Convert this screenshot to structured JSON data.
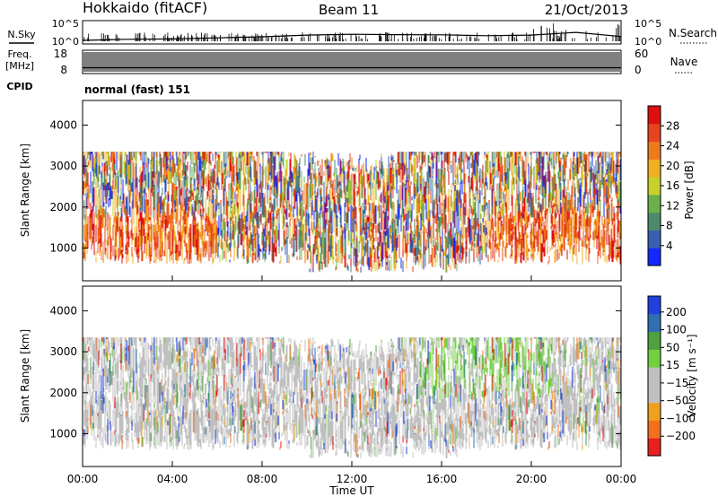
{
  "header": {
    "station": "Hokkaido (fitACF)",
    "beam": "Beam 11",
    "date": "21/Oct/2013"
  },
  "noise_panel": {
    "left_label": "N.Sky",
    "right_label": "N.Search",
    "ticks_left": [
      "10^5",
      "10^0"
    ],
    "ticks_right": [
      "10^5",
      "10^0"
    ]
  },
  "freq_panel": {
    "left_label_1": "Freq.",
    "left_label_2": "[MHz]",
    "right_label": "Nave",
    "ticks_left": [
      "18",
      "8"
    ],
    "ticks_right": [
      "60",
      "0"
    ]
  },
  "cpid": {
    "label": "CPID",
    "text": "normal (fast) 151"
  },
  "colors": {
    "power_scale": [
      "#1428ff",
      "#3a5fb0",
      "#4e8a6c",
      "#6bb04a",
      "#c8d02a",
      "#f0b020",
      "#ee7a1e",
      "#e84420",
      "#dd1010"
    ],
    "velocity_scale": [
      "#2040e0",
      "#3070b0",
      "#50a040",
      "#70d040",
      "#c0c0c0",
      "#c0c0c0",
      "#f0a020",
      "#f07020",
      "#e82020"
    ],
    "ground_scatter": "#b8b8b8"
  },
  "chart_data": [
    {
      "type": "line",
      "title": "",
      "xlabel": "",
      "ylabel": "N.Sky",
      "yscale": "log",
      "ylim": [
        1,
        100000
      ],
      "x_unit": "hours UT",
      "x_range": [
        0,
        24
      ],
      "series": [
        {
          "name": "N.Sky",
          "x": [
            0,
            2,
            4,
            6,
            8,
            10,
            12,
            14,
            16,
            18,
            20,
            22,
            24
          ],
          "values": [
            6,
            10,
            12,
            20,
            35,
            80,
            120,
            100,
            90,
            60,
            80,
            300,
            40
          ]
        }
      ]
    },
    {
      "type": "line",
      "title": "",
      "xlabel": "",
      "ylabel": "Freq. [MHz]",
      "ylim": [
        8,
        18
      ],
      "y2label": "Nave",
      "y2lim": [
        0,
        60
      ],
      "series": [
        {
          "name": "Freq.",
          "x": [
            0,
            24
          ],
          "values": [
            10.5,
            10.5
          ]
        }
      ]
    },
    {
      "type": "heatmap",
      "title": "",
      "xlabel": "",
      "ylabel": "Slant Range [km]",
      "colorbar_label": "Power [dB]",
      "colorbar_ticks": [
        4,
        8,
        12,
        16,
        20,
        24,
        28
      ],
      "clim": [
        0,
        32
      ],
      "ylim": [
        200,
        4600
      ],
      "yticks": [
        1000,
        2000,
        3000,
        4000
      ],
      "x_range": [
        0,
        24
      ],
      "grid": false
    },
    {
      "type": "heatmap",
      "title": "",
      "xlabel": "Time UT",
      "ylabel": "Slant Range [km]",
      "colorbar_label": "Velocity [m s⁻¹]",
      "colorbar_ticks": [
        200,
        100,
        50,
        15,
        -15,
        -50,
        -100,
        -200
      ],
      "clim": [
        -250,
        250
      ],
      "ylim": [
        200,
        4600
      ],
      "yticks": [
        1000,
        2000,
        3000,
        4000
      ],
      "xticks": [
        "00:00",
        "04:00",
        "08:00",
        "12:00",
        "16:00",
        "20:00",
        "00:00"
      ],
      "x_range": [
        0,
        24
      ],
      "grid": false
    }
  ]
}
